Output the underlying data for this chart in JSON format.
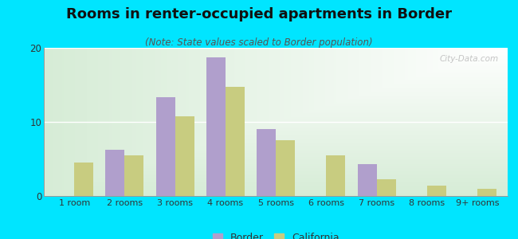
{
  "title": "Rooms in renter-occupied apartments in Border",
  "subtitle": "(Note: State values scaled to Border population)",
  "categories": [
    "1 room",
    "2 rooms",
    "3 rooms",
    "4 rooms",
    "5 rooms",
    "6 rooms",
    "7 rooms",
    "8 rooms",
    "9+ rooms"
  ],
  "border_values": [
    0,
    6.2,
    13.3,
    18.7,
    9.0,
    0,
    4.3,
    0,
    0
  ],
  "california_values": [
    4.5,
    5.5,
    10.8,
    14.7,
    7.5,
    5.5,
    2.3,
    1.4,
    1.0
  ],
  "border_color": "#b09fcc",
  "california_color": "#c8cc80",
  "ylim": [
    0,
    20
  ],
  "yticks": [
    0,
    10,
    20
  ],
  "outer_bg": "#00e5ff",
  "title_fontsize": 13,
  "subtitle_fontsize": 8.5,
  "legend_fontsize": 9,
  "bar_width": 0.38
}
